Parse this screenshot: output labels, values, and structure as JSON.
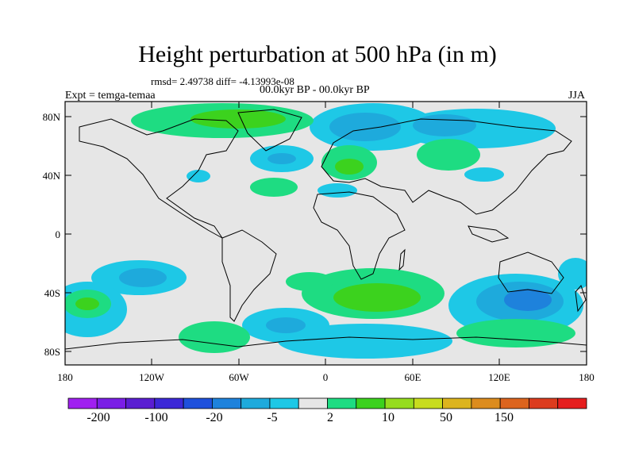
{
  "title": "Height perturbation at 500 hPa (in m)",
  "stats": "rmsd= 2.49738 diff= -4.13993e-08",
  "period": "00.0kyr BP - 00.0kyr BP",
  "experiment": "Expt = temga-temaa",
  "season": "JJA",
  "axes": {
    "lat_ticks": [
      "80N",
      "40N",
      "0",
      "40S",
      "80S"
    ],
    "lon_ticks": [
      "180",
      "120W",
      "60W",
      "0",
      "60E",
      "120E",
      "180"
    ]
  },
  "colorbar": {
    "colors": [
      "#a020f0",
      "#7a1ee6",
      "#5a1ed2",
      "#3c28d7",
      "#1e50dc",
      "#1e82dc",
      "#1eaadc",
      "#1ec8e6",
      "#e6e6e6",
      "#1edc82",
      "#3cd21e",
      "#96dc1e",
      "#c8dc1e",
      "#dcb41e",
      "#dc8c1e",
      "#dc641e",
      "#dc3c1e",
      "#e61e1e"
    ],
    "labels": [
      "-200",
      "-100",
      "-20",
      "-5",
      "2",
      "10",
      "50",
      "150"
    ],
    "neutral_color": "#e6e6e6"
  }
}
